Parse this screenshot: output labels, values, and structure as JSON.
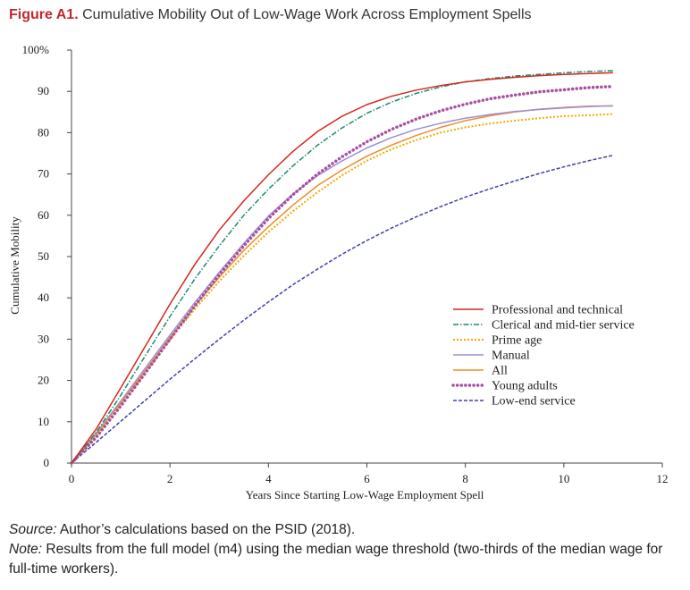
{
  "figure": {
    "label": "Figure A1.",
    "title": "Cumulative Mobility Out of Low-Wage Work Across Employment Spells"
  },
  "notes": {
    "source_label": "Source:",
    "source_text": "Author’s calculations based on the PSID (2018).",
    "note_label": "Note:",
    "note_text": "Results from the full model (m4) using the median wage threshold (two-thirds of the median wage for full-time workers)."
  },
  "chart_data": {
    "type": "line",
    "xlabel": "Years Since Starting Low-Wage Employment Spell",
    "ylabel": "Cumulative Mobility",
    "xlim": [
      0,
      12
    ],
    "ylim": [
      0,
      100
    ],
    "x_ticks": [
      0,
      2,
      4,
      6,
      8,
      10,
      12
    ],
    "y_ticks": [
      0,
      10,
      20,
      30,
      40,
      50,
      60,
      70,
      80,
      90,
      100
    ],
    "y_tick_labels": [
      "0",
      "10",
      "20",
      "30",
      "40",
      "50",
      "60",
      "70",
      "80",
      "90",
      "100%"
    ],
    "legend_position": "right-center",
    "x": [
      0,
      0.5,
      1,
      1.5,
      2,
      2.5,
      3,
      3.5,
      4,
      4.5,
      5,
      5.5,
      6,
      6.5,
      7,
      7.5,
      8,
      8.5,
      9,
      9.5,
      10,
      10.5,
      11
    ],
    "series": [
      {
        "name": "Professional and technical",
        "color": "#d7261e",
        "style": "solid",
        "values": [
          0,
          8.2,
          18.2,
          28.3,
          38.5,
          48.0,
          56.4,
          63.5,
          69.8,
          75.5,
          80.3,
          84.0,
          86.8,
          88.8,
          90.3,
          91.4,
          92.3,
          92.9,
          93.4,
          93.8,
          94.1,
          94.3,
          94.5
        ]
      },
      {
        "name": "Clerical and mid-tier service",
        "color": "#1e8a6e",
        "style": "dashdot",
        "values": [
          0,
          7.4,
          16.4,
          26.0,
          35.5,
          44.5,
          52.6,
          60.0,
          66.3,
          72.0,
          77.0,
          81.2,
          84.7,
          87.4,
          89.5,
          91.1,
          92.3,
          93.1,
          93.7,
          94.1,
          94.5,
          94.8,
          95.0
        ]
      },
      {
        "name": "Prime age",
        "color": "#f2a900",
        "style": "dotted",
        "values": [
          0,
          6.8,
          14.4,
          22.0,
          29.8,
          37.2,
          44.0,
          50.2,
          55.9,
          61.0,
          65.6,
          69.7,
          73.2,
          76.0,
          78.2,
          80.0,
          81.3,
          82.2,
          82.9,
          83.5,
          84.0,
          84.2,
          84.5
        ]
      },
      {
        "name": "Manual",
        "color": "#9a8fd9",
        "style": "solid",
        "values": [
          0,
          7.2,
          15.0,
          23.0,
          31.0,
          38.8,
          46.2,
          53.2,
          59.8,
          65.2,
          69.6,
          73.2,
          76.3,
          78.8,
          80.8,
          82.3,
          83.5,
          84.4,
          85.1,
          85.6,
          86.0,
          86.3,
          86.5
        ]
      },
      {
        "name": "All",
        "color": "#ef8c2b",
        "style": "solid",
        "values": [
          0,
          6.9,
          14.6,
          22.4,
          30.4,
          38.0,
          45.0,
          51.5,
          57.2,
          62.5,
          67.2,
          71.0,
          74.3,
          77.0,
          79.3,
          81.3,
          82.9,
          84.1,
          85.0,
          85.7,
          86.1,
          86.4,
          86.5
        ]
      },
      {
        "name": "Young adults",
        "color": "#a74fa1",
        "style": "dotted-heavy",
        "values": [
          0,
          6.2,
          13.8,
          21.8,
          30.0,
          38.0,
          45.6,
          52.6,
          59.2,
          65.0,
          70.0,
          74.2,
          77.8,
          80.8,
          83.3,
          85.3,
          86.9,
          88.2,
          89.1,
          89.9,
          90.4,
          90.9,
          91.2
        ]
      },
      {
        "name": "Low-end service",
        "color": "#3f3fb0",
        "style": "dashed",
        "values": [
          0,
          5.0,
          10.1,
          15.2,
          20.3,
          25.2,
          30.0,
          34.6,
          39.0,
          43.2,
          47.0,
          50.6,
          53.9,
          56.9,
          59.6,
          62.1,
          64.4,
          66.4,
          68.3,
          70.1,
          71.7,
          73.2,
          74.5
        ]
      }
    ]
  }
}
